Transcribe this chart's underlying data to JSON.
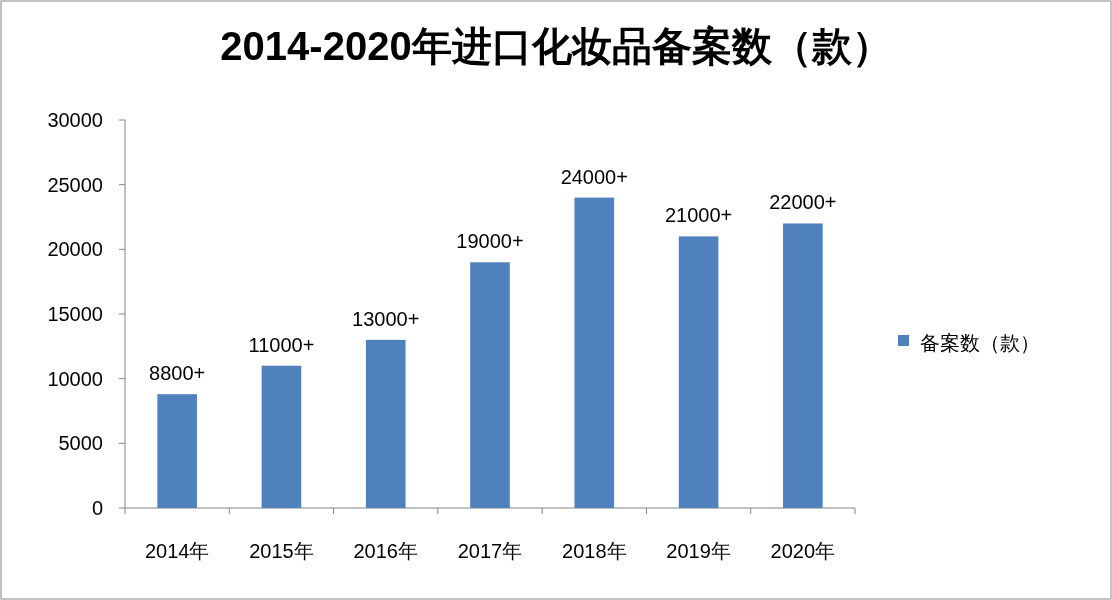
{
  "chart_data": {
    "type": "bar",
    "title": "2014-2020年进口化妆品备案数（款）",
    "categories": [
      "2014年",
      "2015年",
      "2016年",
      "2017年",
      "2018年",
      "2019年",
      "2020年"
    ],
    "series": [
      {
        "name": "备案数（款）",
        "color": "#4f81bd",
        "values": [
          8800,
          11000,
          13000,
          19000,
          24000,
          21000,
          22000
        ],
        "value_labels": [
          "8800+",
          "11000+",
          "13000+",
          "19000+",
          "24000+",
          "21000+",
          "22000+"
        ]
      }
    ],
    "ylim": [
      0,
      30000
    ],
    "yticks": [
      0,
      5000,
      10000,
      15000,
      20000,
      25000,
      30000
    ],
    "legend": "right"
  }
}
